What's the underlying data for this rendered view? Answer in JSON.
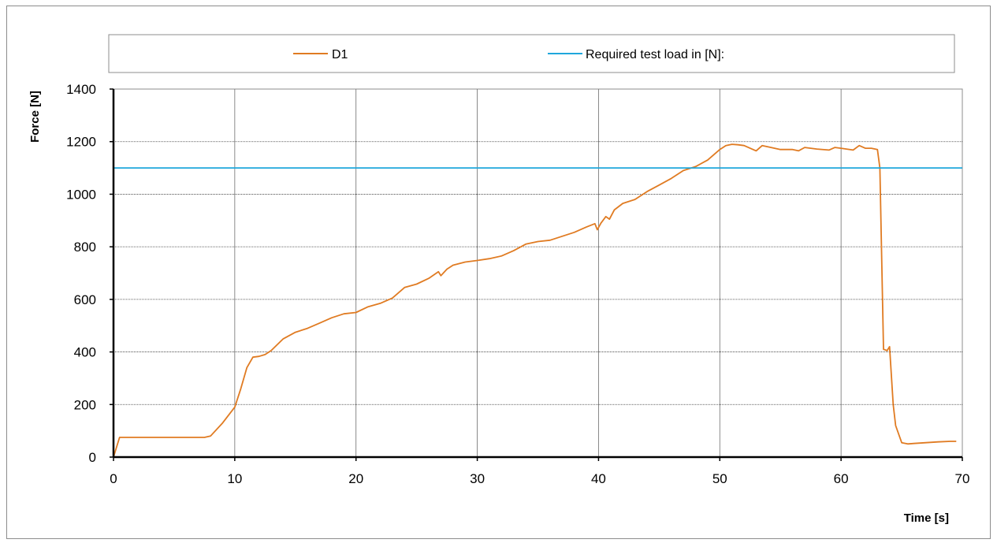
{
  "chart_data": {
    "type": "line",
    "xlabel": "Time [s]",
    "ylabel": "Force [N]",
    "xlim": [
      0,
      70
    ],
    "ylim": [
      0,
      1400
    ],
    "x_ticks": [
      0,
      10,
      20,
      30,
      40,
      50,
      60,
      70
    ],
    "y_ticks": [
      0,
      200,
      400,
      600,
      800,
      1000,
      1200,
      1400
    ],
    "grid": true,
    "legend_position": "top",
    "series": [
      {
        "name": "D1",
        "color": "#e07b22",
        "x": [
          0,
          0.5,
          7.5,
          8.0,
          9.0,
          10.0,
          10.5,
          11.0,
          11.5,
          12.0,
          12.5,
          13.0,
          14.0,
          15.0,
          16.0,
          17.0,
          18.0,
          19.0,
          20.0,
          21.0,
          22.0,
          23.0,
          24.0,
          25.0,
          26.0,
          26.8,
          27.0,
          27.5,
          28.0,
          29.0,
          30.0,
          31.0,
          32.0,
          33.0,
          34.0,
          35.0,
          36.0,
          37.0,
          38.0,
          39.0,
          39.7,
          39.9,
          40.2,
          40.6,
          40.9,
          41.3,
          42.0,
          43.0,
          44.0,
          45.0,
          46.0,
          47.0,
          48.0,
          49.0,
          50.0,
          50.5,
          51.0,
          51.5,
          52.0,
          53.0,
          53.5,
          54.0,
          55.0,
          56.0,
          56.5,
          57.0,
          58.0,
          59.0,
          59.5,
          60.0,
          61.0,
          61.5,
          62.0,
          62.5,
          63.0,
          63.2,
          63.5,
          63.8,
          64.0,
          64.3,
          64.5,
          65.0,
          65.5,
          66.0,
          67.0,
          68.0,
          69.0,
          69.5
        ],
        "values": [
          0,
          75,
          75,
          80,
          130,
          190,
          260,
          340,
          380,
          383,
          390,
          405,
          450,
          475,
          490,
          510,
          530,
          545,
          550,
          572,
          585,
          605,
          645,
          658,
          680,
          705,
          690,
          715,
          730,
          742,
          748,
          755,
          765,
          785,
          810,
          820,
          825,
          840,
          855,
          875,
          888,
          865,
          890,
          915,
          905,
          940,
          965,
          980,
          1010,
          1035,
          1060,
          1090,
          1105,
          1130,
          1170,
          1185,
          1190,
          1188,
          1185,
          1165,
          1185,
          1180,
          1170,
          1170,
          1165,
          1178,
          1172,
          1168,
          1178,
          1175,
          1168,
          1185,
          1175,
          1175,
          1170,
          1100,
          410,
          405,
          420,
          200,
          120,
          55,
          50,
          52,
          55,
          58,
          60,
          60
        ]
      },
      {
        "name": "Required test load in [N]:",
        "color": "#1fa7dc",
        "x": [
          0,
          70
        ],
        "values": [
          1100,
          1100
        ]
      }
    ]
  }
}
